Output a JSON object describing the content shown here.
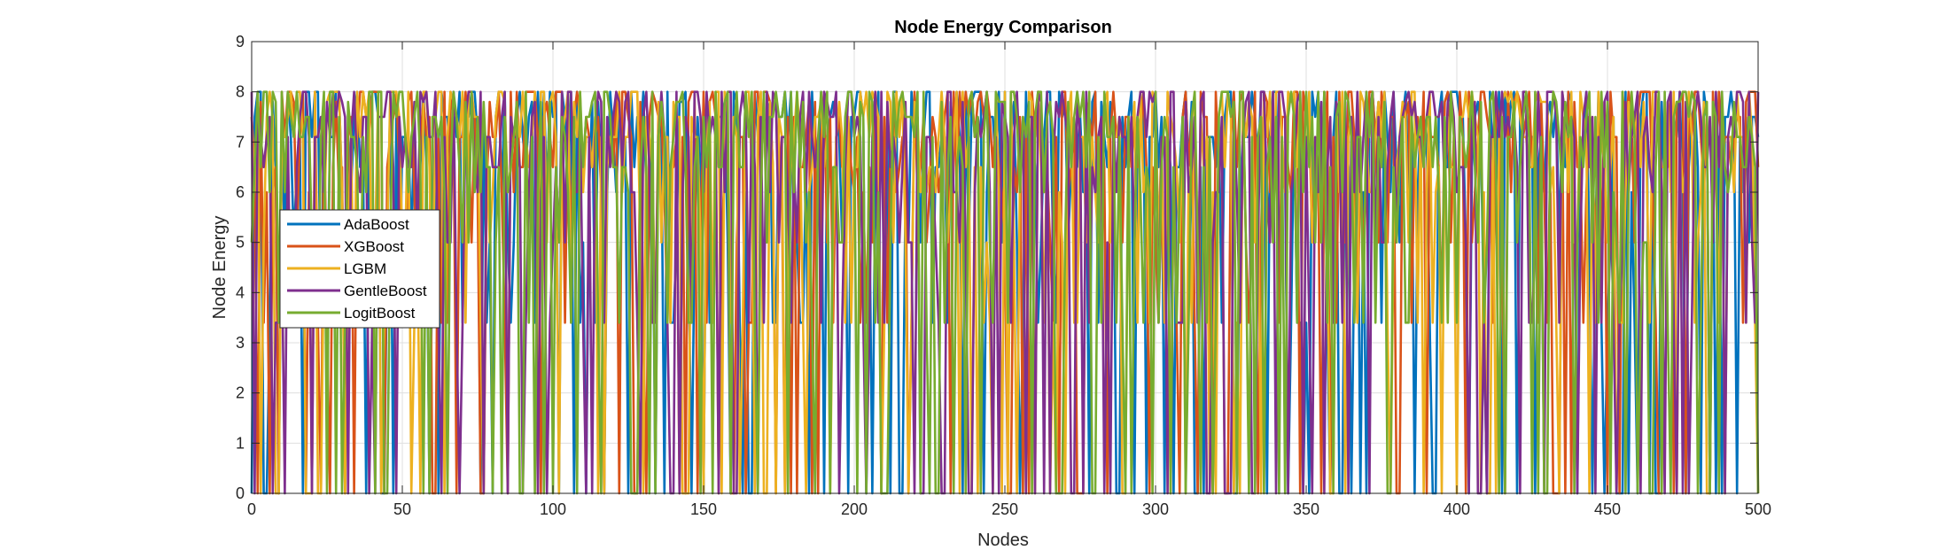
{
  "chart_data": {
    "type": "line",
    "title": "Node Energy Comparison",
    "xlabel": "Nodes",
    "ylabel": "Node Energy",
    "xlim": [
      0,
      500
    ],
    "ylim": [
      0,
      9
    ],
    "xticks": [
      0,
      50,
      100,
      150,
      200,
      250,
      300,
      350,
      400,
      450,
      500
    ],
    "yticks": [
      0,
      1,
      2,
      3,
      4,
      5,
      6,
      7,
      8,
      9
    ],
    "grid": true,
    "legend_position": "left",
    "level_values": [
      0,
      3.4,
      5,
      6,
      6.5,
      7.1,
      7.5,
      7.8,
      8
    ],
    "series": [
      {
        "name": "AdaBoost",
        "color": "#0072BD"
      },
      {
        "name": "XGBoost",
        "color": "#D95319"
      },
      {
        "name": "LGBM",
        "color": "#EDB120"
      },
      {
        "name": "GentleBoost",
        "color": "#7E2F8E"
      },
      {
        "name": "LogitBoost",
        "color": "#77AC30"
      }
    ]
  }
}
